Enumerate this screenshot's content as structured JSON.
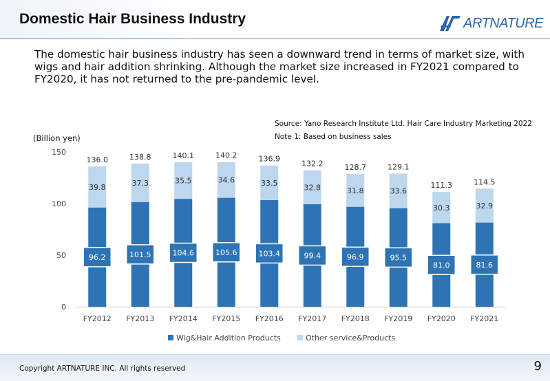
{
  "header": {
    "title": "Domestic Hair Business Industry",
    "logo_text": "ARTNATURE",
    "brand_color": "#2d64ad"
  },
  "summary": "The domestic hair business industry has seen a downward trend in terms of market size, with wigs and hair addition shrinking. Although the market size increased in FY2021 compared to FY2020, it has not returned to the pre-pandemic level.",
  "source": "Source: Yano Research Institute Ltd. Hair Care Industry Marketing 2022",
  "note": "Note 1: Based on business sales",
  "footer": {
    "copyright": "Copyright ARTNATURE INC. All rights reserved",
    "page_number": "9"
  },
  "chart_data": {
    "type": "bar",
    "stacked": true,
    "unit_label": "(Billion yen)",
    "categories": [
      "FY2012",
      "FY2013",
      "FY2014",
      "FY2015",
      "FY2016",
      "FY2017",
      "FY2018",
      "FY2019",
      "FY2020",
      "FY2021"
    ],
    "series": [
      {
        "name": "Wig&Hair Addition Products",
        "color": "#2e74b5",
        "values": [
          96.2,
          101.5,
          104.6,
          105.6,
          103.4,
          99.4,
          96.9,
          95.5,
          81.0,
          81.6
        ],
        "labels": [
          "96.2",
          "101.5",
          "104.6",
          "105.6",
          "103.4",
          "99.4",
          "96.9",
          "95.5",
          "81.0",
          "81.6"
        ]
      },
      {
        "name": "Other service&Products",
        "color": "#bdd7ee",
        "values": [
          39.8,
          37.3,
          35.5,
          34.6,
          33.5,
          32.8,
          31.8,
          33.6,
          30.3,
          32.9
        ],
        "labels": [
          "39.8",
          "37.3",
          "35.5",
          "34.6",
          "33.5",
          "32.8",
          "31.8",
          "33.6",
          "30.3",
          "32.9"
        ]
      }
    ],
    "totals": [
      136.0,
      138.8,
      140.1,
      140.2,
      136.9,
      132.2,
      128.7,
      129.1,
      111.3,
      114.5
    ],
    "total_labels": [
      "136.0",
      "138.8",
      "140.1",
      "140.2",
      "136.9",
      "132.2",
      "128.7",
      "129.1",
      "111.3",
      "114.5"
    ],
    "ylim": [
      0,
      150
    ],
    "yticks": [
      "0",
      "50",
      "100",
      "150"
    ],
    "grid": false,
    "legend_position": "bottom"
  }
}
